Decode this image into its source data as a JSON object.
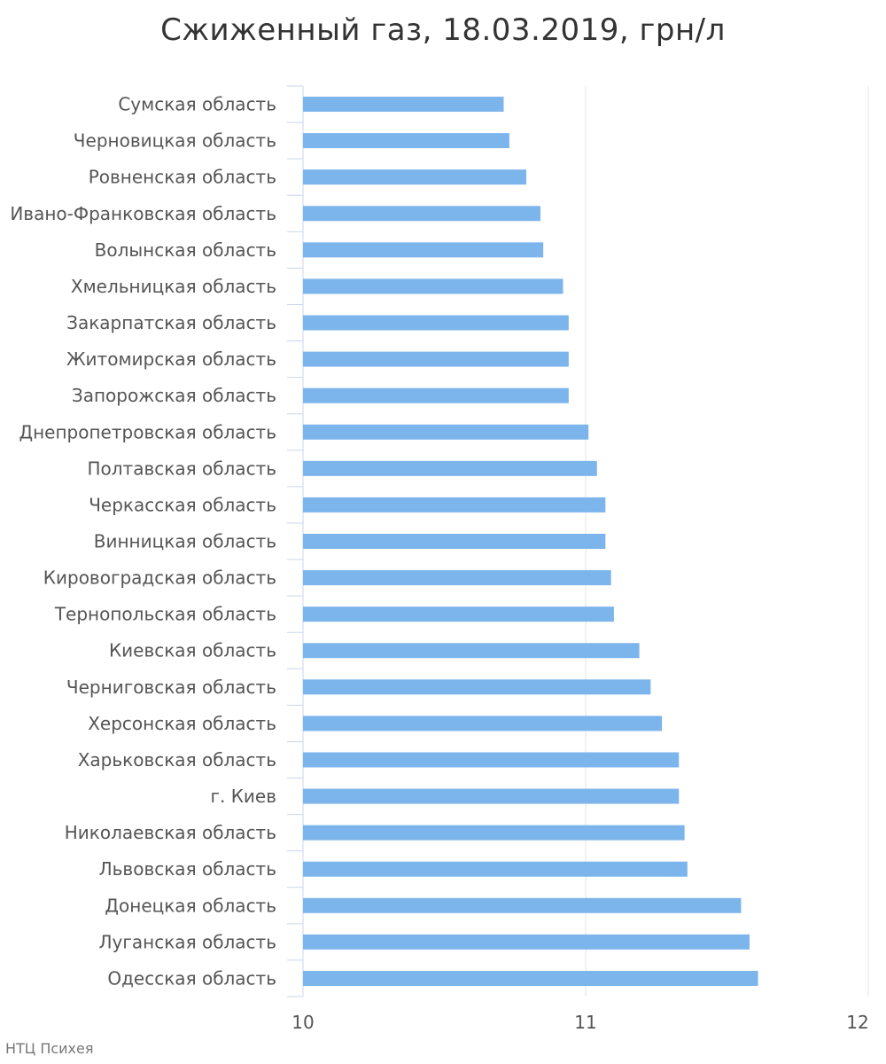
{
  "chart_data": {
    "type": "bar",
    "orientation": "horizontal",
    "title": "Сжиженный газ, 18.03.2019, грн/л",
    "xlim": [
      10,
      12
    ],
    "x_ticks": [
      "10",
      "11",
      "12"
    ],
    "grid": true,
    "bar_color": "#7cb5ec",
    "categories": [
      "Сумская область",
      "Черновицкая область",
      "Ровненская область",
      "Ивано-Франковская область",
      "Волынская область",
      "Хмельницкая область",
      "Закарпатская область",
      "Житомирская область",
      "Запорожская область",
      "Днепропетровская область",
      "Полтавская область",
      "Черкасская область",
      "Винницкая область",
      "Кировоградская область",
      "Тернопольская область",
      "Киевская область",
      "Черниговская область",
      "Херсонская область",
      "Харьковская область",
      "г. Киев",
      "Николаевская область",
      "Львовская область",
      "Донецкая область",
      "Луганская область",
      "Одесская область"
    ],
    "values": [
      10.71,
      10.73,
      10.79,
      10.84,
      10.85,
      10.92,
      10.94,
      10.94,
      10.94,
      11.01,
      11.04,
      11.07,
      11.07,
      11.09,
      11.1,
      11.19,
      11.23,
      11.27,
      11.33,
      11.33,
      11.35,
      11.36,
      11.55,
      11.58,
      11.61
    ]
  },
  "credit": "НТЦ Психея"
}
